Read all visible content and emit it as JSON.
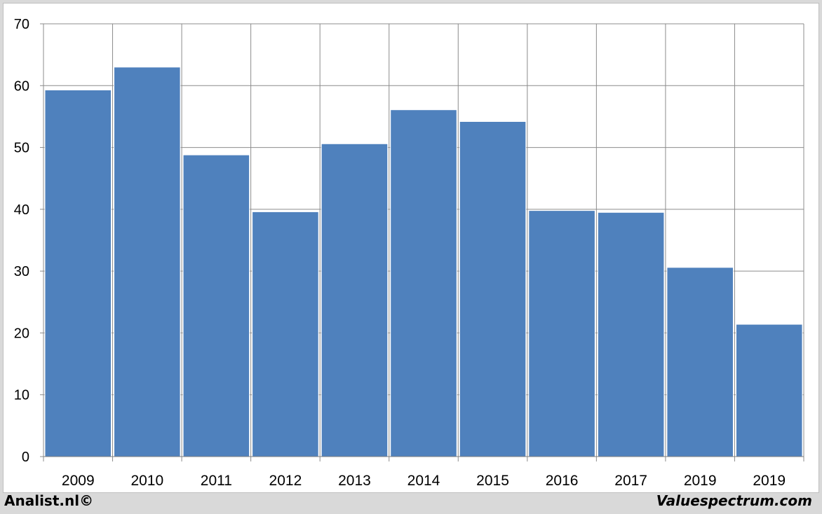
{
  "chart_data": {
    "type": "bar",
    "categories": [
      "2009",
      "2010",
      "2011",
      "2012",
      "2013",
      "2014",
      "2015",
      "2016",
      "2017",
      "2019",
      "2019"
    ],
    "values": [
      59.3,
      63.0,
      48.8,
      39.6,
      50.6,
      56.1,
      54.2,
      39.8,
      39.5,
      30.6,
      21.4
    ],
    "ylim": [
      0,
      70
    ],
    "yticks": [
      0,
      10,
      20,
      30,
      40,
      50,
      60,
      70
    ],
    "grid": true,
    "bar_color": "#4f81bd",
    "grid_color": "#8c8c8c"
  },
  "footer": {
    "left": "Analist.nl©",
    "right": "Valuespectrum.com"
  }
}
